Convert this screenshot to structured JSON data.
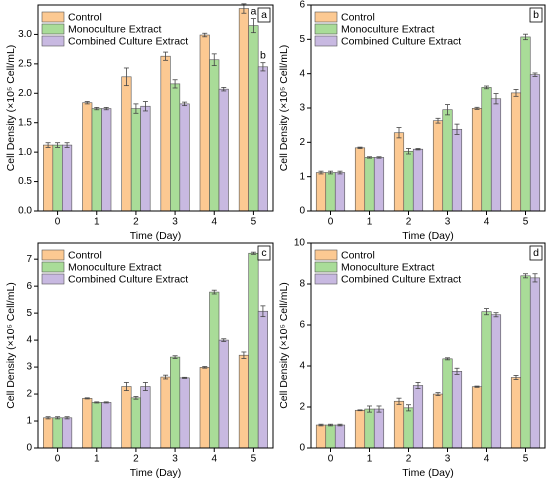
{
  "chart_data": [
    {
      "type": "bar",
      "panel_label": "a",
      "xlabel": "Time (Day)",
      "ylabel": "Cell Density (×10⁵ Cell/mL)",
      "categories": [
        "0",
        "1",
        "2",
        "3",
        "4",
        "5"
      ],
      "series": [
        {
          "name": "Control",
          "color": "#fcc992",
          "values": [
            1.12,
            1.84,
            2.28,
            2.63,
            2.99,
            3.44
          ],
          "errors": [
            0.04,
            0.02,
            0.15,
            0.07,
            0.03,
            0.08
          ],
          "significance": [
            null,
            null,
            null,
            null,
            null,
            "a"
          ]
        },
        {
          "name": "Monoculture Extract",
          "color": "#a9dc98",
          "values": [
            1.12,
            1.74,
            1.74,
            2.16,
            2.57,
            3.15
          ],
          "errors": [
            0.04,
            0.02,
            0.08,
            0.07,
            0.1,
            0.12
          ],
          "significance": [
            null,
            null,
            null,
            null,
            null,
            "a"
          ]
        },
        {
          "name": "Combined Culture Extract",
          "color": "#c8b9e1",
          "values": [
            1.12,
            1.74,
            1.78,
            1.82,
            2.07,
            2.45
          ],
          "errors": [
            0.04,
            0.02,
            0.08,
            0.03,
            0.03,
            0.07
          ],
          "significance": [
            null,
            null,
            null,
            null,
            null,
            "b"
          ]
        }
      ],
      "ylim": [
        0,
        3.5
      ],
      "yticks": [
        {
          "value": 0,
          "label": "0.0"
        },
        {
          "value": 0.5,
          "label": "0.5"
        },
        {
          "value": 1,
          "label": "1.0"
        },
        {
          "value": 1.5,
          "label": "1.5"
        },
        {
          "value": 2,
          "label": "2.0"
        },
        {
          "value": 2.5,
          "label": "2.5"
        },
        {
          "value": 3,
          "label": "3.0"
        }
      ]
    },
    {
      "type": "bar",
      "panel_label": "b",
      "xlabel": "Time (Day)",
      "ylabel": "Cell Density (×10⁵ Cell/mL)",
      "categories": [
        "0",
        "1",
        "2",
        "3",
        "4",
        "5"
      ],
      "series": [
        {
          "name": "Control",
          "color": "#fcc992",
          "values": [
            1.12,
            1.84,
            2.28,
            2.63,
            2.99,
            3.44
          ],
          "errors": [
            0.04,
            0.02,
            0.15,
            0.07,
            0.03,
            0.1
          ]
        },
        {
          "name": "Monoculture Extract",
          "color": "#a9dc98",
          "values": [
            1.12,
            1.56,
            1.74,
            2.95,
            3.6,
            5.07
          ],
          "errors": [
            0.04,
            0.02,
            0.08,
            0.15,
            0.04,
            0.08
          ]
        },
        {
          "name": "Combined Culture Extract",
          "color": "#c8b9e1",
          "values": [
            1.12,
            1.56,
            1.8,
            2.38,
            3.27,
            3.97
          ],
          "errors": [
            0.04,
            0.02,
            0.02,
            0.15,
            0.15,
            0.05
          ]
        }
      ],
      "ylim": [
        0,
        6
      ],
      "yticks": [
        0,
        1,
        2,
        3,
        4,
        5,
        6
      ]
    },
    {
      "type": "bar",
      "panel_label": "c",
      "xlabel": "Time (Day)",
      "ylabel": "Cell Density (×10⁵ Cell/mL)",
      "categories": [
        "0",
        "1",
        "2",
        "3",
        "4",
        "5"
      ],
      "series": [
        {
          "name": "Control",
          "color": "#fcc992",
          "values": [
            1.12,
            1.84,
            2.28,
            2.63,
            2.99,
            3.44
          ],
          "errors": [
            0.04,
            0.02,
            0.15,
            0.07,
            0.03,
            0.12
          ]
        },
        {
          "name": "Monoculture Extract",
          "color": "#a9dc98",
          "values": [
            1.12,
            1.69,
            1.86,
            3.37,
            5.78,
            7.22
          ],
          "errors": [
            0.04,
            0.02,
            0.05,
            0.05,
            0.07,
            0.04
          ]
        },
        {
          "name": "Combined Culture Extract",
          "color": "#c8b9e1",
          "values": [
            1.12,
            1.69,
            2.28,
            2.6,
            4.0,
            5.07
          ],
          "errors": [
            0.04,
            0.02,
            0.15,
            0.02,
            0.05,
            0.2
          ]
        }
      ],
      "ylim": [
        0,
        7.6
      ],
      "yticks": [
        0,
        1,
        2,
        3,
        4,
        5,
        6,
        7
      ]
    },
    {
      "type": "bar",
      "panel_label": "d",
      "xlabel": "Time (Day)",
      "ylabel": "Cell Density (×10⁵ Cell/mL)",
      "categories": [
        "0",
        "1",
        "2",
        "3",
        "4",
        "5"
      ],
      "series": [
        {
          "name": "Control",
          "color": "#fcc992",
          "values": [
            1.12,
            1.84,
            2.28,
            2.63,
            2.99,
            3.44
          ],
          "errors": [
            0.04,
            0.02,
            0.15,
            0.07,
            0.03,
            0.1
          ]
        },
        {
          "name": "Monoculture Extract",
          "color": "#a9dc98",
          "values": [
            1.12,
            1.9,
            1.96,
            4.35,
            6.65,
            8.4
          ],
          "errors": [
            0.04,
            0.15,
            0.15,
            0.05,
            0.15,
            0.1
          ]
        },
        {
          "name": "Combined Culture Extract",
          "color": "#c8b9e1",
          "values": [
            1.12,
            1.9,
            3.05,
            3.74,
            6.5,
            8.3
          ],
          "errors": [
            0.04,
            0.15,
            0.15,
            0.15,
            0.1,
            0.2
          ]
        }
      ],
      "ylim": [
        0,
        10
      ],
      "yticks": [
        0,
        2,
        4,
        6,
        8,
        10
      ]
    }
  ]
}
